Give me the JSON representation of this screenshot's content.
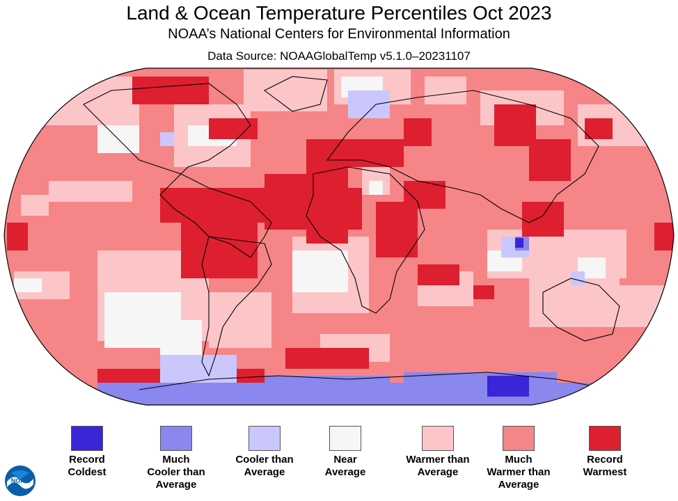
{
  "title": "Land & Ocean Temperature Percentiles Oct 2023",
  "subtitle": "NOAA’s National Centers for Environmental Information",
  "source": "Data Source: NOAAGlobalTemp v5.1.0–20231107",
  "logo_text": "NOAA",
  "legend": [
    {
      "label": "Record\nColdest",
      "color": "#3a25d8"
    },
    {
      "label": "Much\nCooler than\nAverage",
      "color": "#8a87ee"
    },
    {
      "label": "Cooler than\nAverage",
      "color": "#c9c7fb"
    },
    {
      "label": "Near\nAverage",
      "color": "#f6f6f6"
    },
    {
      "label": "Warmer than\nAverage",
      "color": "#fcc6c9"
    },
    {
      "label": "Much\nWarmer than\nAverage",
      "color": "#f68588"
    },
    {
      "label": "Record\nWarmest",
      "color": "#dd1f2f"
    }
  ],
  "map": {
    "projection": "Robinson",
    "ocean_color": "#f68588",
    "border_color": "#000000"
  }
}
